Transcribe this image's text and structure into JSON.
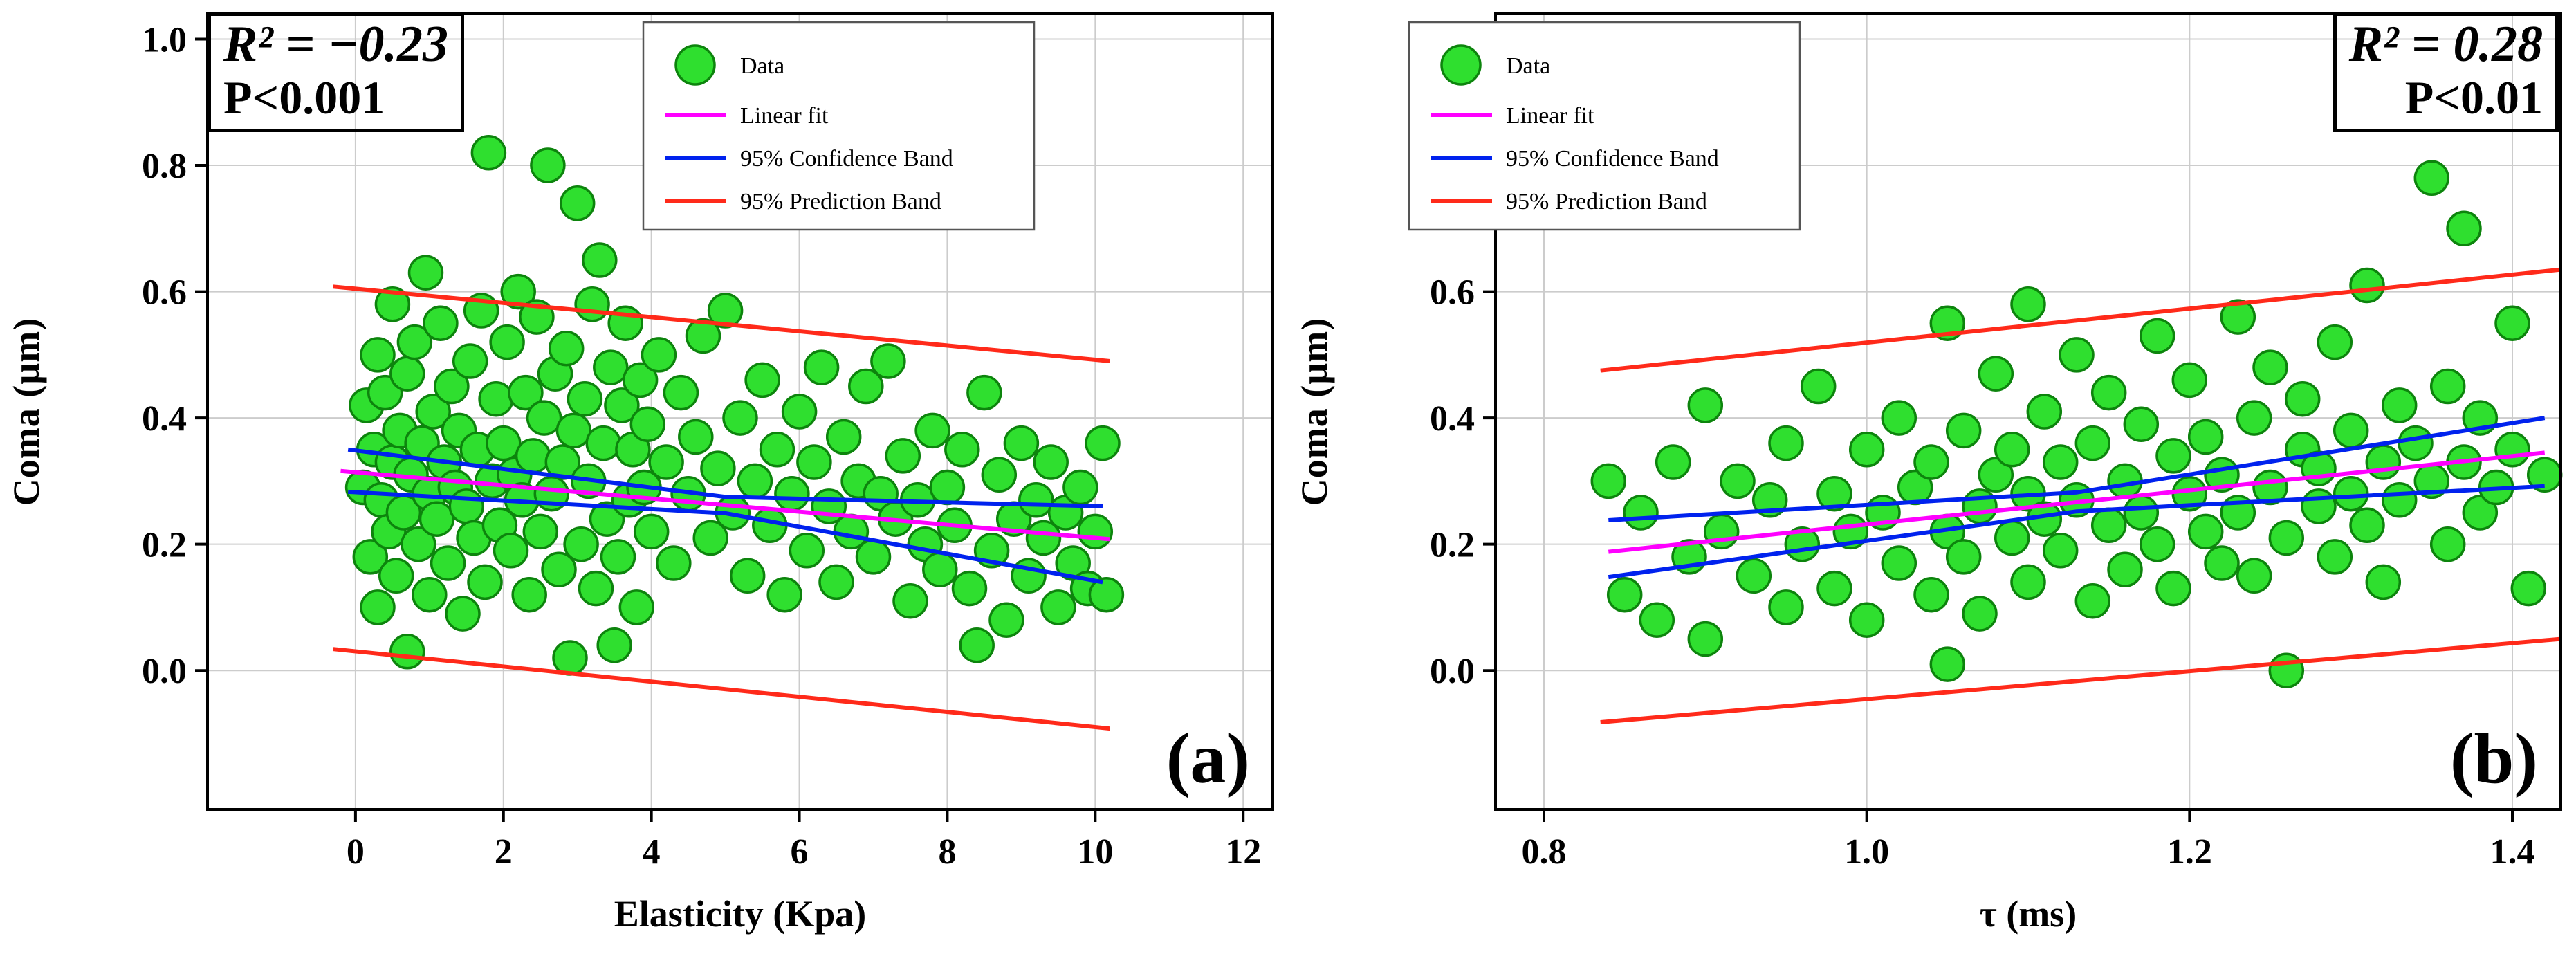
{
  "colors": {
    "grid": "#cccccc",
    "frame": "#000000",
    "marker_fill": "#2fdf2f",
    "marker_edge": "#0d840d",
    "fit": "#ff00ff",
    "confidence": "#0022ee",
    "prediction": "#ff2a1a",
    "legend_border": "#555555",
    "annotation_border": "#000000"
  },
  "legend": {
    "items": [
      {
        "label": "Data",
        "kind": "marker",
        "color": "#2fdf2f"
      },
      {
        "label": "Linear fit",
        "kind": "line",
        "color": "#ff00ff"
      },
      {
        "label": "95% Confidence Band",
        "kind": "line",
        "color": "#0022ee"
      },
      {
        "label": "95% Prediction Band",
        "kind": "line",
        "color": "#ff2a1a"
      }
    ]
  },
  "chart_data": [
    {
      "type": "scatter",
      "panel_label": "(a)",
      "xlabel": "Elasticity (Kpa)",
      "ylabel": "Coma (µm)",
      "xlim": [
        -2.0,
        12.4
      ],
      "ylim": [
        -0.22,
        1.04
      ],
      "xtick_vals": [
        0,
        2,
        4,
        6,
        8,
        10,
        12
      ],
      "xticks": [
        "0",
        "2",
        "4",
        "6",
        "8",
        "10",
        "12"
      ],
      "ytick_vals": [
        0,
        0.2,
        0.4,
        0.6,
        0.8,
        1.0
      ],
      "yticks": [
        "0.0",
        "0.2",
        "0.4",
        "0.6",
        "0.8",
        "1.0"
      ],
      "grid": true,
      "legend_corner": "top-center",
      "annotation": {
        "r2": "R² = −0.23",
        "p": "P<0.001",
        "corner": "top-left"
      },
      "fit": [
        [
          -0.2,
          0.316
        ],
        [
          10.2,
          0.208
        ]
      ],
      "conf_upper": [
        [
          -0.1,
          0.35
        ],
        [
          5.0,
          0.275
        ],
        [
          10.1,
          0.26
        ]
      ],
      "conf_lower": [
        [
          -0.1,
          0.283
        ],
        [
          5.0,
          0.249
        ],
        [
          10.1,
          0.14
        ]
      ],
      "pred_upper": [
        [
          -0.3,
          0.608
        ],
        [
          10.2,
          0.49
        ]
      ],
      "pred_lower": [
        [
          -0.3,
          0.034
        ],
        [
          10.2,
          -0.092
        ]
      ],
      "points": [
        [
          0.1,
          0.29
        ],
        [
          0.15,
          0.42
        ],
        [
          0.2,
          0.18
        ],
        [
          0.25,
          0.35
        ],
        [
          0.3,
          0.5
        ],
        [
          0.3,
          0.1
        ],
        [
          0.35,
          0.27
        ],
        [
          0.4,
          0.44
        ],
        [
          0.45,
          0.22
        ],
        [
          0.5,
          0.33
        ],
        [
          0.5,
          0.58
        ],
        [
          0.55,
          0.15
        ],
        [
          0.6,
          0.38
        ],
        [
          0.65,
          0.25
        ],
        [
          0.7,
          0.47
        ],
        [
          0.7,
          0.03
        ],
        [
          0.75,
          0.31
        ],
        [
          0.8,
          0.52
        ],
        [
          0.85,
          0.2
        ],
        [
          0.9,
          0.36
        ],
        [
          0.95,
          0.63
        ],
        [
          1.0,
          0.28
        ],
        [
          1.0,
          0.12
        ],
        [
          1.05,
          0.41
        ],
        [
          1.1,
          0.24
        ],
        [
          1.15,
          0.55
        ],
        [
          1.2,
          0.33
        ],
        [
          1.25,
          0.17
        ],
        [
          1.3,
          0.45
        ],
        [
          1.35,
          0.29
        ],
        [
          1.4,
          0.38
        ],
        [
          1.45,
          0.09
        ],
        [
          1.5,
          0.26
        ],
        [
          1.55,
          0.49
        ],
        [
          1.6,
          0.21
        ],
        [
          1.65,
          0.35
        ],
        [
          1.7,
          0.57
        ],
        [
          1.75,
          0.14
        ],
        [
          1.8,
          0.82
        ],
        [
          1.85,
          0.3
        ],
        [
          1.9,
          0.43
        ],
        [
          1.95,
          0.23
        ],
        [
          2.0,
          0.36
        ],
        [
          2.05,
          0.52
        ],
        [
          2.1,
          0.19
        ],
        [
          2.15,
          0.31
        ],
        [
          2.2,
          0.6
        ],
        [
          2.25,
          0.27
        ],
        [
          2.3,
          0.44
        ],
        [
          2.35,
          0.12
        ],
        [
          2.4,
          0.34
        ],
        [
          2.45,
          0.56
        ],
        [
          2.5,
          0.22
        ],
        [
          2.55,
          0.4
        ],
        [
          2.6,
          0.8
        ],
        [
          2.65,
          0.28
        ],
        [
          2.7,
          0.47
        ],
        [
          2.75,
          0.16
        ],
        [
          2.8,
          0.33
        ],
        [
          2.85,
          0.51
        ],
        [
          2.9,
          0.02
        ],
        [
          2.95,
          0.38
        ],
        [
          3.0,
          0.74
        ],
        [
          3.05,
          0.2
        ],
        [
          3.1,
          0.43
        ],
        [
          3.15,
          0.3
        ],
        [
          3.2,
          0.58
        ],
        [
          3.25,
          0.13
        ],
        [
          3.3,
          0.65
        ],
        [
          3.35,
          0.36
        ],
        [
          3.4,
          0.24
        ],
        [
          3.45,
          0.48
        ],
        [
          3.5,
          0.04
        ],
        [
          3.55,
          0.18
        ],
        [
          3.6,
          0.42
        ],
        [
          3.65,
          0.55
        ],
        [
          3.7,
          0.27
        ],
        [
          3.75,
          0.35
        ],
        [
          3.8,
          0.1
        ],
        [
          3.85,
          0.46
        ],
        [
          3.9,
          0.29
        ],
        [
          3.95,
          0.39
        ],
        [
          4.0,
          0.22
        ],
        [
          4.1,
          0.5
        ],
        [
          4.2,
          0.33
        ],
        [
          4.3,
          0.17
        ],
        [
          4.4,
          0.44
        ],
        [
          4.5,
          0.28
        ],
        [
          4.6,
          0.37
        ],
        [
          4.7,
          0.53
        ],
        [
          4.8,
          0.21
        ],
        [
          4.9,
          0.32
        ],
        [
          5.0,
          0.57
        ],
        [
          5.1,
          0.25
        ],
        [
          5.2,
          0.4
        ],
        [
          5.3,
          0.15
        ],
        [
          5.4,
          0.3
        ],
        [
          5.5,
          0.46
        ],
        [
          5.6,
          0.23
        ],
        [
          5.7,
          0.35
        ],
        [
          5.8,
          0.12
        ],
        [
          5.9,
          0.28
        ],
        [
          6.0,
          0.41
        ],
        [
          6.1,
          0.19
        ],
        [
          6.2,
          0.33
        ],
        [
          6.3,
          0.48
        ],
        [
          6.4,
          0.26
        ],
        [
          6.5,
          0.14
        ],
        [
          6.6,
          0.37
        ],
        [
          6.7,
          0.22
        ],
        [
          6.8,
          0.3
        ],
        [
          6.9,
          0.45
        ],
        [
          7.0,
          0.18
        ],
        [
          7.1,
          0.28
        ],
        [
          7.2,
          0.49
        ],
        [
          7.3,
          0.24
        ],
        [
          7.4,
          0.34
        ],
        [
          7.5,
          0.11
        ],
        [
          7.6,
          0.27
        ],
        [
          7.7,
          0.2
        ],
        [
          7.8,
          0.38
        ],
        [
          7.9,
          0.16
        ],
        [
          8.0,
          0.29
        ],
        [
          8.1,
          0.23
        ],
        [
          8.2,
          0.35
        ],
        [
          8.3,
          0.13
        ],
        [
          8.4,
          0.04
        ],
        [
          8.5,
          0.44
        ],
        [
          8.6,
          0.19
        ],
        [
          8.7,
          0.31
        ],
        [
          8.8,
          0.08
        ],
        [
          8.9,
          0.24
        ],
        [
          9.0,
          0.36
        ],
        [
          9.1,
          0.15
        ],
        [
          9.2,
          0.27
        ],
        [
          9.3,
          0.21
        ],
        [
          9.4,
          0.33
        ],
        [
          9.5,
          0.1
        ],
        [
          9.6,
          0.25
        ],
        [
          9.7,
          0.17
        ],
        [
          9.8,
          0.29
        ],
        [
          9.9,
          0.13
        ],
        [
          10.0,
          0.22
        ],
        [
          10.1,
          0.36
        ],
        [
          10.15,
          0.12
        ]
      ]
    },
    {
      "type": "scatter",
      "panel_label": "(b)",
      "xlabel": "τ (ms)",
      "ylabel": "Coma (µm)",
      "xlim": [
        0.77,
        1.43
      ],
      "ylim": [
        -0.22,
        1.04
      ],
      "xtick_vals": [
        0.8,
        1.0,
        1.2,
        1.4
      ],
      "xticks": [
        "0.8",
        "1.0",
        "1.2",
        "1.4"
      ],
      "ytick_vals": [
        0,
        0.2,
        0.4,
        0.6,
        0.8,
        1.0
      ],
      "yticks": [
        "0.0",
        "0.2",
        "0.4",
        "0.6",
        "0.8",
        "1.0"
      ],
      "grid": true,
      "legend_corner": "top-left",
      "annotation": {
        "r2": "R² = 0.28",
        "p": "P<0.01",
        "corner": "top-right"
      },
      "fit": [
        [
          0.84,
          0.188
        ],
        [
          1.42,
          0.345
        ]
      ],
      "conf_upper": [
        [
          0.84,
          0.238
        ],
        [
          1.13,
          0.282
        ],
        [
          1.42,
          0.4
        ]
      ],
      "conf_lower": [
        [
          0.84,
          0.148
        ],
        [
          1.13,
          0.252
        ],
        [
          1.42,
          0.292
        ]
      ],
      "pred_upper": [
        [
          0.835,
          0.475
        ],
        [
          1.43,
          0.635
        ]
      ],
      "pred_lower": [
        [
          0.835,
          -0.082
        ],
        [
          1.43,
          0.05
        ]
      ],
      "points": [
        [
          0.84,
          0.3
        ],
        [
          0.85,
          0.12
        ],
        [
          0.86,
          0.25
        ],
        [
          0.87,
          0.08
        ],
        [
          0.88,
          0.33
        ],
        [
          0.89,
          0.18
        ],
        [
          0.9,
          0.42
        ],
        [
          0.9,
          0.05
        ],
        [
          0.91,
          0.22
        ],
        [
          0.92,
          0.3
        ],
        [
          0.93,
          0.15
        ],
        [
          0.94,
          0.27
        ],
        [
          0.95,
          0.1
        ],
        [
          0.95,
          0.36
        ],
        [
          0.96,
          0.2
        ],
        [
          0.97,
          0.45
        ],
        [
          0.98,
          0.13
        ],
        [
          0.98,
          0.28
        ],
        [
          0.99,
          0.22
        ],
        [
          1.0,
          0.35
        ],
        [
          1.0,
          0.08
        ],
        [
          1.01,
          0.25
        ],
        [
          1.02,
          0.17
        ],
        [
          1.02,
          0.4
        ],
        [
          1.03,
          0.29
        ],
        [
          1.04,
          0.12
        ],
        [
          1.04,
          0.33
        ],
        [
          1.05,
          0.22
        ],
        [
          1.05,
          0.55
        ],
        [
          1.05,
          0.01
        ],
        [
          1.06,
          0.18
        ],
        [
          1.06,
          0.38
        ],
        [
          1.07,
          0.26
        ],
        [
          1.07,
          0.09
        ],
        [
          1.08,
          0.31
        ],
        [
          1.08,
          0.47
        ],
        [
          1.09,
          0.21
        ],
        [
          1.09,
          0.35
        ],
        [
          1.1,
          0.14
        ],
        [
          1.1,
          0.28
        ],
        [
          1.1,
          0.58
        ],
        [
          1.11,
          0.24
        ],
        [
          1.11,
          0.41
        ],
        [
          1.12,
          0.19
        ],
        [
          1.12,
          0.33
        ],
        [
          1.13,
          0.27
        ],
        [
          1.13,
          0.5
        ],
        [
          1.14,
          0.11
        ],
        [
          1.14,
          0.36
        ],
        [
          1.15,
          0.23
        ],
        [
          1.15,
          0.44
        ],
        [
          1.16,
          0.3
        ],
        [
          1.16,
          0.16
        ],
        [
          1.17,
          0.39
        ],
        [
          1.17,
          0.25
        ],
        [
          1.18,
          0.53
        ],
        [
          1.18,
          0.2
        ],
        [
          1.19,
          0.34
        ],
        [
          1.19,
          0.13
        ],
        [
          1.2,
          0.28
        ],
        [
          1.2,
          0.46
        ],
        [
          1.21,
          0.22
        ],
        [
          1.21,
          0.37
        ],
        [
          1.22,
          0.17
        ],
        [
          1.22,
          0.31
        ],
        [
          1.23,
          0.56
        ],
        [
          1.23,
          0.25
        ],
        [
          1.24,
          0.4
        ],
        [
          1.24,
          0.15
        ],
        [
          1.25,
          0.29
        ],
        [
          1.25,
          0.48
        ],
        [
          1.26,
          0.21
        ],
        [
          1.26,
          0.0
        ],
        [
          1.27,
          0.35
        ],
        [
          1.27,
          0.43
        ],
        [
          1.28,
          0.26
        ],
        [
          1.28,
          0.32
        ],
        [
          1.29,
          0.18
        ],
        [
          1.29,
          0.52
        ],
        [
          1.3,
          0.28
        ],
        [
          1.3,
          0.38
        ],
        [
          1.31,
          0.23
        ],
        [
          1.31,
          0.61
        ],
        [
          1.32,
          0.33
        ],
        [
          1.32,
          0.14
        ],
        [
          1.33,
          0.42
        ],
        [
          1.33,
          0.27
        ],
        [
          1.34,
          0.36
        ],
        [
          1.35,
          0.78
        ],
        [
          1.35,
          0.3
        ],
        [
          1.36,
          0.2
        ],
        [
          1.36,
          0.45
        ],
        [
          1.37,
          0.7
        ],
        [
          1.37,
          0.33
        ],
        [
          1.38,
          0.25
        ],
        [
          1.38,
          0.4
        ],
        [
          1.39,
          0.29
        ],
        [
          1.4,
          0.55
        ],
        [
          1.4,
          0.35
        ],
        [
          1.41,
          0.13
        ],
        [
          1.42,
          0.31
        ]
      ]
    }
  ]
}
